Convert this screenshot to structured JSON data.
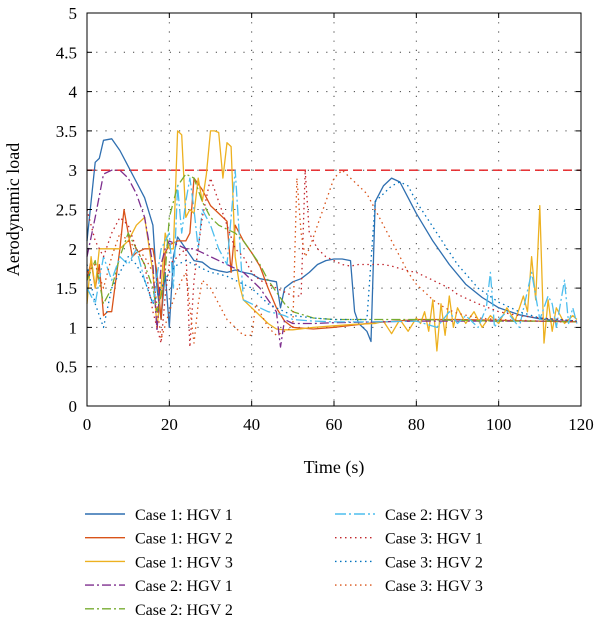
{
  "chart_data": {
    "type": "line",
    "xlabel": "Time (s)",
    "ylabel": "Aerodynamic load",
    "xlim": [
      0,
      120
    ],
    "ylim": [
      0,
      5
    ],
    "xticks": [
      "0",
      "20",
      "40",
      "60",
      "80",
      "100",
      "120"
    ],
    "yticks": [
      "0",
      "0.5",
      "1",
      "1.5",
      "2",
      "2.5",
      "3",
      "3.5",
      "4",
      "4.5",
      "5"
    ],
    "grid": "dotted",
    "reference_lines": [
      {
        "y": 3.0,
        "color": "#e41a1c",
        "style": "dashed"
      }
    ],
    "legend_position": "bottom",
    "series": [
      {
        "name": "Case 1: HGV 1",
        "color": "#2f6fb0",
        "style": "solid",
        "x": [
          0,
          2,
          3,
          4,
          6,
          8,
          10,
          12,
          14,
          16,
          17,
          18,
          19,
          20,
          21,
          22,
          24,
          26,
          28,
          30,
          32,
          34,
          36,
          38,
          40,
          42,
          44,
          46,
          47,
          48,
          50,
          52,
          54,
          56,
          58,
          60,
          62,
          64,
          65,
          66,
          68,
          69,
          70,
          71,
          72,
          74,
          76,
          78,
          80,
          84,
          88,
          92,
          96,
          100,
          105,
          110,
          115,
          119
        ],
        "y": [
          2.1,
          3.1,
          3.15,
          3.38,
          3.4,
          3.25,
          3.05,
          2.85,
          2.65,
          2.3,
          1.5,
          1.1,
          1.7,
          1.0,
          1.9,
          2.15,
          2.0,
          1.85,
          1.83,
          1.75,
          1.72,
          1.7,
          1.73,
          1.7,
          1.68,
          1.62,
          1.6,
          1.58,
          1.25,
          1.5,
          1.58,
          1.62,
          1.7,
          1.8,
          1.85,
          1.87,
          1.87,
          1.85,
          1.2,
          1.05,
          0.95,
          0.82,
          2.6,
          2.7,
          2.8,
          2.9,
          2.85,
          2.65,
          2.45,
          2.1,
          1.8,
          1.55,
          1.38,
          1.25,
          1.16,
          1.11,
          1.08,
          1.07
        ]
      },
      {
        "name": "Case 1: HGV 2",
        "color": "#d95319",
        "style": "solid",
        "x": [
          0,
          1,
          2,
          3,
          4,
          5,
          6,
          8,
          9,
          10,
          11,
          12,
          14,
          16,
          17,
          18,
          19,
          20,
          22,
          24,
          25,
          26,
          28,
          30,
          32,
          34,
          35,
          36,
          38,
          40,
          42,
          44,
          46,
          48,
          50,
          55,
          60,
          65,
          70,
          75,
          80,
          90,
          100,
          110,
          119
        ],
        "y": [
          1.6,
          1.85,
          1.5,
          1.8,
          1.15,
          1.2,
          1.2,
          2.0,
          2.5,
          2.2,
          1.9,
          1.95,
          2.0,
          2.0,
          1.7,
          1.1,
          1.95,
          2.05,
          2.1,
          2.1,
          2.2,
          2.9,
          2.75,
          2.55,
          2.45,
          2.35,
          1.7,
          2.3,
          2.1,
          1.95,
          1.78,
          1.5,
          1.25,
          1.08,
          1.0,
          0.98,
          1.0,
          1.03,
          1.06,
          1.08,
          1.1,
          1.1,
          1.09,
          1.08,
          1.07
        ]
      },
      {
        "name": "Case 1: HGV 3",
        "color": "#edb120",
        "style": "solid",
        "x": [
          0,
          1,
          2,
          3,
          4,
          5,
          6,
          8,
          10,
          12,
          14,
          16,
          17,
          18,
          19,
          20,
          21,
          22,
          23,
          24,
          25,
          26,
          27,
          28,
          29,
          30,
          31,
          32,
          33,
          34,
          35,
          36,
          37,
          38,
          40,
          42,
          44,
          46,
          48,
          50,
          55,
          60,
          65,
          70,
          72,
          74,
          76,
          78,
          80,
          81,
          82,
          83,
          84,
          85,
          86,
          87,
          88,
          89,
          90,
          92,
          94,
          96,
          98,
          100,
          102,
          104,
          106,
          107,
          108,
          109,
          110,
          111,
          112,
          113,
          114,
          116,
          118,
          119
        ],
        "y": [
          1.3,
          1.9,
          1.5,
          2.0,
          2.0,
          2.0,
          2.0,
          2.0,
          2.1,
          2.3,
          2.4,
          1.7,
          1.0,
          1.5,
          2.2,
          2.0,
          2.0,
          3.5,
          3.45,
          2.4,
          2.5,
          2.45,
          2.9,
          2.6,
          2.95,
          3.5,
          3.5,
          3.48,
          2.9,
          3.35,
          3.3,
          1.9,
          1.55,
          1.35,
          1.25,
          1.15,
          1.05,
          0.98,
          0.97,
          0.97,
          1.0,
          1.02,
          1.04,
          1.05,
          1.08,
          0.92,
          1.1,
          0.95,
          1.12,
          1.05,
          1.2,
          0.95,
          1.35,
          0.7,
          1.3,
          0.9,
          1.4,
          1.0,
          1.25,
          1.05,
          1.2,
          1.0,
          1.15,
          1.05,
          1.25,
          1.08,
          1.4,
          1.2,
          1.9,
          1.35,
          2.55,
          0.8,
          1.35,
          0.95,
          1.25,
          1.05,
          1.15,
          1.1
        ]
      },
      {
        "name": "Case 2: HGV 1",
        "color": "#7e2f8e",
        "style": "dashdot",
        "x": [
          0,
          2,
          4,
          6,
          8,
          10,
          12,
          14,
          16,
          17,
          18,
          19,
          20,
          22,
          24,
          26,
          28,
          30,
          32,
          34,
          36,
          38,
          40,
          42,
          44,
          46,
          47,
          48,
          50,
          55,
          60,
          70,
          80,
          90,
          100,
          110,
          119
        ],
        "y": [
          1.9,
          2.4,
          2.95,
          3.0,
          3.0,
          2.9,
          2.7,
          2.4,
          1.8,
          0.95,
          1.8,
          2.0,
          2.1,
          2.05,
          2.0,
          2.0,
          1.95,
          1.9,
          1.85,
          1.8,
          1.75,
          1.7,
          1.6,
          1.5,
          1.35,
          1.2,
          0.75,
          1.1,
          1.05,
          1.05,
          1.06,
          1.07,
          1.08,
          1.08,
          1.08,
          1.08,
          1.08
        ]
      },
      {
        "name": "Case 2: HGV 2",
        "color": "#77ac30",
        "style": "dashdot",
        "x": [
          0,
          2,
          4,
          6,
          8,
          10,
          12,
          14,
          16,
          17,
          18,
          19,
          20,
          22,
          24,
          26,
          28,
          30,
          32,
          34,
          36,
          38,
          40,
          42,
          44,
          46,
          48,
          50,
          55,
          60,
          70,
          80,
          90,
          100,
          110,
          119
        ],
        "y": [
          1.6,
          1.85,
          1.3,
          1.5,
          1.9,
          2.2,
          2.0,
          1.8,
          1.5,
          1.2,
          1.4,
          1.7,
          2.4,
          2.8,
          2.95,
          2.9,
          2.6,
          2.4,
          2.3,
          2.25,
          2.2,
          2.1,
          1.95,
          1.8,
          1.6,
          1.45,
          1.3,
          1.2,
          1.12,
          1.1,
          1.1,
          1.1,
          1.09,
          1.08,
          1.08,
          1.07
        ]
      },
      {
        "name": "Case 2: HGV 3",
        "color": "#4dbeee",
        "style": "dashdot2",
        "x": [
          0,
          2,
          4,
          6,
          8,
          10,
          12,
          14,
          16,
          18,
          20,
          21,
          22,
          23,
          24,
          25,
          26,
          27,
          28,
          30,
          32,
          34,
          36,
          38,
          40,
          42,
          44,
          46,
          48,
          50,
          55,
          60,
          70,
          80,
          85,
          88,
          90,
          92,
          95,
          97,
          98,
          99,
          100,
          102,
          105,
          108,
          110,
          112,
          113,
          114,
          116,
          117,
          118,
          119
        ],
        "y": [
          1.5,
          1.3,
          1.9,
          1.6,
          1.9,
          1.8,
          2.0,
          1.6,
          1.3,
          2.0,
          2.2,
          1.5,
          2.8,
          2.2,
          2.6,
          2.9,
          2.5,
          2.0,
          2.5,
          2.3,
          2.0,
          1.8,
          3.0,
          1.35,
          1.3,
          1.25,
          1.2,
          1.18,
          1.15,
          1.1,
          1.08,
          1.07,
          1.07,
          1.08,
          1.0,
          1.2,
          1.05,
          1.15,
          1.0,
          1.25,
          1.7,
          1.0,
          1.1,
          1.2,
          1.0,
          1.7,
          1.1,
          1.4,
          1.3,
          1.0,
          1.6,
          1.05,
          1.25,
          1.05
        ]
      },
      {
        "name": "Case 3: HGV 1",
        "color": "#c1272d",
        "style": "dotted",
        "x": [
          0,
          2,
          4,
          6,
          8,
          10,
          12,
          14,
          16,
          18,
          19,
          20,
          22,
          24,
          25,
          26,
          28,
          30,
          32,
          34,
          36,
          38,
          40,
          42,
          44,
          46,
          48,
          50,
          52,
          53,
          54,
          56,
          58,
          60,
          62,
          64,
          66,
          68,
          70,
          72,
          74,
          76,
          78,
          80,
          82,
          84,
          86,
          88,
          90,
          95,
          100,
          105,
          110,
          115,
          119
        ],
        "y": [
          2.5,
          2.1,
          1.9,
          2.2,
          2.4,
          2.3,
          2.0,
          1.8,
          1.2,
          0.8,
          1.4,
          1.8,
          1.9,
          2.0,
          0.75,
          1.6,
          2.4,
          2.9,
          2.6,
          2.3,
          2.0,
          1.9,
          1.7,
          1.6,
          1.55,
          1.5,
          1.45,
          1.4,
          1.4,
          3.0,
          2.2,
          2.0,
          1.9,
          1.85,
          1.8,
          1.78,
          1.8,
          1.8,
          1.8,
          1.8,
          1.78,
          1.75,
          1.72,
          1.7,
          1.65,
          1.6,
          1.55,
          1.5,
          1.42,
          1.3,
          1.2,
          1.15,
          1.12,
          1.1,
          1.08
        ]
      },
      {
        "name": "Case 3: HGV 2",
        "color": "#0072bd",
        "style": "dotted",
        "x": [
          0,
          2,
          4,
          6,
          8,
          10,
          12,
          14,
          16,
          18,
          20,
          22,
          24,
          26,
          28,
          30,
          32,
          34,
          36,
          38,
          40,
          42,
          44,
          46,
          48,
          50,
          55,
          60,
          65,
          68,
          70,
          72,
          74,
          76,
          78,
          80,
          85,
          90,
          95,
          100,
          105,
          110,
          115,
          119
        ],
        "y": [
          1.8,
          1.3,
          1.0,
          1.5,
          1.7,
          1.9,
          1.8,
          1.6,
          1.3,
          1.5,
          1.7,
          1.8,
          1.85,
          1.8,
          1.75,
          1.7,
          1.68,
          1.65,
          1.6,
          1.55,
          1.5,
          1.4,
          1.3,
          1.25,
          1.2,
          1.15,
          1.12,
          1.1,
          1.1,
          1.1,
          2.6,
          2.7,
          2.8,
          2.85,
          2.8,
          2.6,
          2.2,
          1.8,
          1.5,
          1.32,
          1.2,
          1.12,
          1.1,
          1.08
        ]
      },
      {
        "name": "Case 3: HGV 3",
        "color": "#d95319",
        "style": "dotted",
        "x": [
          0,
          2,
          4,
          6,
          8,
          10,
          12,
          14,
          16,
          18,
          20,
          22,
          24,
          26,
          27,
          28,
          30,
          32,
          34,
          36,
          38,
          40,
          41,
          42,
          44,
          46,
          48,
          50,
          51,
          52,
          53,
          54,
          56,
          58,
          60,
          62,
          64,
          66,
          68,
          70,
          72,
          74,
          76,
          78,
          80,
          82,
          84,
          86,
          88,
          90,
          95,
          100,
          105,
          110,
          115,
          119
        ],
        "y": [
          1.7,
          1.8,
          1.5,
          1.9,
          2.2,
          2.1,
          2.0,
          1.9,
          1.7,
          0.85,
          1.2,
          1.5,
          1.7,
          0.8,
          1.3,
          1.6,
          1.5,
          1.3,
          1.1,
          1.0,
          0.9,
          0.9,
          1.3,
          1.2,
          1.0,
          0.9,
          0.95,
          1.0,
          2.9,
          2.2,
          1.9,
          2.0,
          2.3,
          2.6,
          2.9,
          3.0,
          2.9,
          2.8,
          2.7,
          2.5,
          2.3,
          2.1,
          1.9,
          1.7,
          1.55,
          1.45,
          1.35,
          1.28,
          1.22,
          1.18,
          1.12,
          1.1,
          1.09,
          1.08,
          1.07,
          1.07
        ]
      }
    ]
  }
}
